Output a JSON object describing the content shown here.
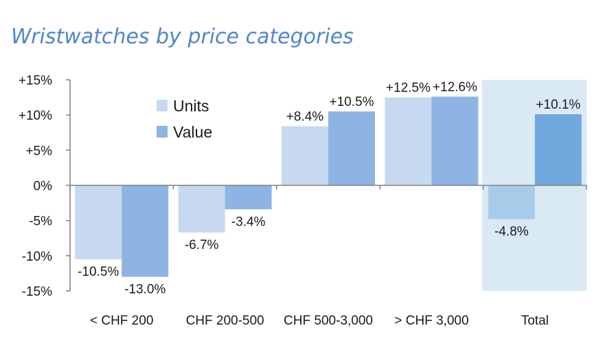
{
  "chart_data": {
    "type": "bar",
    "title": "Wristwatches by price categories",
    "categories": [
      "< CHF 200",
      "CHF 200-500",
      "CHF 500-3,000",
      "> CHF 3,000",
      "Total"
    ],
    "series": [
      {
        "name": "Units",
        "values": [
          -10.5,
          -6.7,
          8.4,
          12.5,
          -4.8
        ],
        "labels": [
          "-10.5%",
          "-6.7%",
          "+8.4%",
          "+12.5%",
          "-4.8%"
        ]
      },
      {
        "name": "Value",
        "values": [
          -13.0,
          -3.4,
          10.5,
          12.6,
          10.1
        ],
        "labels": [
          "-13.0%",
          "-3.4%",
          "+10.5%",
          "+12.6%",
          "+10.1%"
        ]
      }
    ],
    "ylim": [
      -15,
      15
    ],
    "yticks": [
      15,
      10,
      5,
      0,
      -5,
      -10,
      -15
    ],
    "ytick_labels": [
      "+15%",
      "+10%",
      "+5%",
      "0%",
      "-5%",
      "-10%",
      "-15%"
    ],
    "xlabel": "",
    "ylabel": "",
    "highlighted_category": "Total",
    "legend_position": "top-left inside plot",
    "grid": false,
    "colors": {
      "units": "#c6d9f1",
      "value": "#8db4e2",
      "total_units": "#a9cbea",
      "total_value": "#6fa8dc",
      "highlight_bg": "#daeaf5",
      "axis": "#808080",
      "title": "#4f86cf"
    }
  }
}
